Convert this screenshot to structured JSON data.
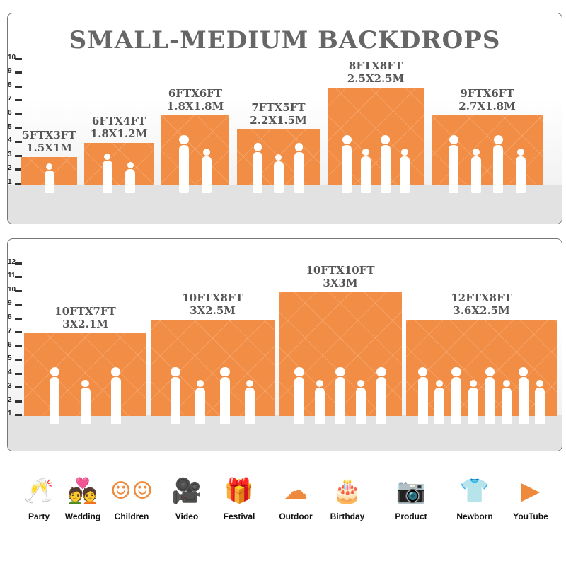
{
  "accent_color": "#f28d45",
  "top_panel": {
    "title": "SMALL-MEDIUM BACKDROPS",
    "axis_ticks": [
      "1",
      "2",
      "3",
      "4",
      "5",
      "6",
      "7",
      "8",
      "9",
      "10"
    ],
    "backdrops": [
      {
        "feet": "5FTX3FT",
        "meters": "1.5X1M",
        "w_ft": 5,
        "h_ft": 3,
        "people": 1
      },
      {
        "feet": "6FTX4FT",
        "meters": "1.8X1.2M",
        "w_ft": 6,
        "h_ft": 4,
        "people": 2
      },
      {
        "feet": "6FTX6FT",
        "meters": "1.8X1.8M",
        "w_ft": 6,
        "h_ft": 6,
        "people": 2
      },
      {
        "feet": "7FTX5FT",
        "meters": "2.2X1.5M",
        "w_ft": 7,
        "h_ft": 5,
        "people": 3
      },
      {
        "feet": "8FTX8FT",
        "meters": "2.5X2.5M",
        "w_ft": 8,
        "h_ft": 8,
        "people": 4
      },
      {
        "feet": "9FTX6FT",
        "meters": "2.7X1.8M",
        "w_ft": 9,
        "h_ft": 6,
        "people": 4
      }
    ]
  },
  "bottom_panel": {
    "axis_ticks": [
      "1",
      "2",
      "3",
      "4",
      "5",
      "6",
      "7",
      "8",
      "9",
      "10",
      "11",
      "12"
    ],
    "backdrops": [
      {
        "feet": "10FTX7FT",
        "meters": "3X2.1M",
        "w_ft": 10,
        "h_ft": 7,
        "people": 3
      },
      {
        "feet": "10FTX8FT",
        "meters": "3X2.5M",
        "w_ft": 10,
        "h_ft": 8,
        "people": 4
      },
      {
        "feet": "10FTX10FT",
        "meters": "3X3M",
        "w_ft": 10,
        "h_ft": 10,
        "people": 5
      },
      {
        "feet": "12FTX8FT",
        "meters": "3.6X2.5M",
        "w_ft": 12,
        "h_ft": 8,
        "people": 8
      }
    ]
  },
  "uses": [
    {
      "label": "Party",
      "icon": "champagne-glasses-icon",
      "glyph": "🥂"
    },
    {
      "label": "Wedding",
      "icon": "wedding-couple-icon",
      "glyph": "💑"
    },
    {
      "label": "Children",
      "icon": "children-faces-icon",
      "glyph": "☺☺"
    },
    {
      "label": "Video",
      "icon": "video-camera-icon",
      "glyph": "🎥"
    },
    {
      "label": "Festival",
      "icon": "gift-box-icon",
      "glyph": "🎁"
    },
    {
      "label": "Outdoor",
      "icon": "cloud-icon",
      "glyph": "☁"
    },
    {
      "label": "Birthday",
      "icon": "birthday-cake-icon",
      "glyph": "🎂"
    },
    {
      "label": "Product",
      "icon": "camera-icon",
      "glyph": "📷"
    },
    {
      "label": "Newborn",
      "icon": "baby-onesie-icon",
      "glyph": "👕"
    },
    {
      "label": "YouTube",
      "icon": "play-button-icon",
      "glyph": "▶"
    }
  ]
}
